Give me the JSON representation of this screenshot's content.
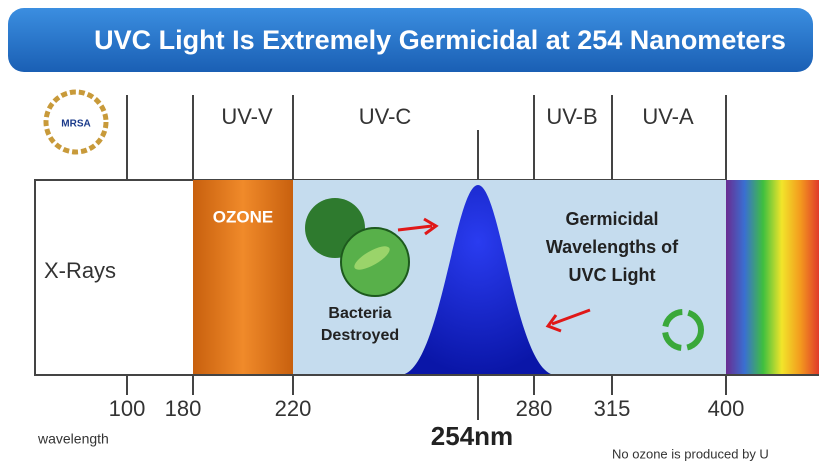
{
  "header": {
    "title": "UVC Light Is Extremely Germicidal at 254 Nanometers"
  },
  "logo": {
    "label": "MRSA"
  },
  "bands": {
    "uv_v": "UV-V",
    "uv_c": "UV-C",
    "uv_b": "UV-B",
    "uv_a": "UV-A",
    "x_rays": "X-Rays",
    "ozone": "OZONE"
  },
  "annotations": {
    "bacteria": [
      "Bacteria",
      "Destroyed"
    ],
    "germicidal": [
      "Germicidal",
      "Wavelengths of",
      "UVC Light"
    ],
    "peak": "254nm"
  },
  "axis": {
    "labels": [
      "100",
      "180",
      "220",
      "280",
      "315",
      "400"
    ],
    "title": "wavelength"
  },
  "footnote": "No ozone is produced by U"
}
